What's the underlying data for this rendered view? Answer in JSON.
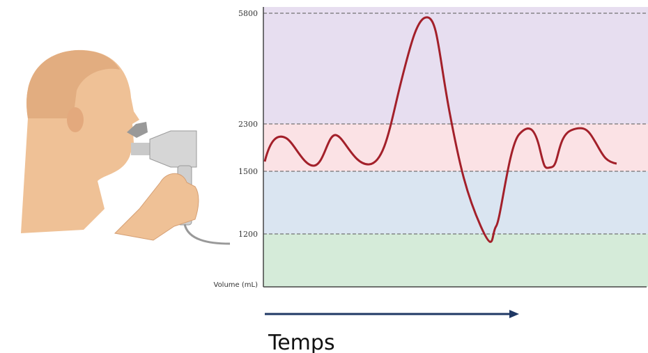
{
  "levels": [
    "5800",
    "2300",
    "1500",
    "1200"
  ],
  "axis_label": "Volume (mL)",
  "time_label": "Temps"
}
